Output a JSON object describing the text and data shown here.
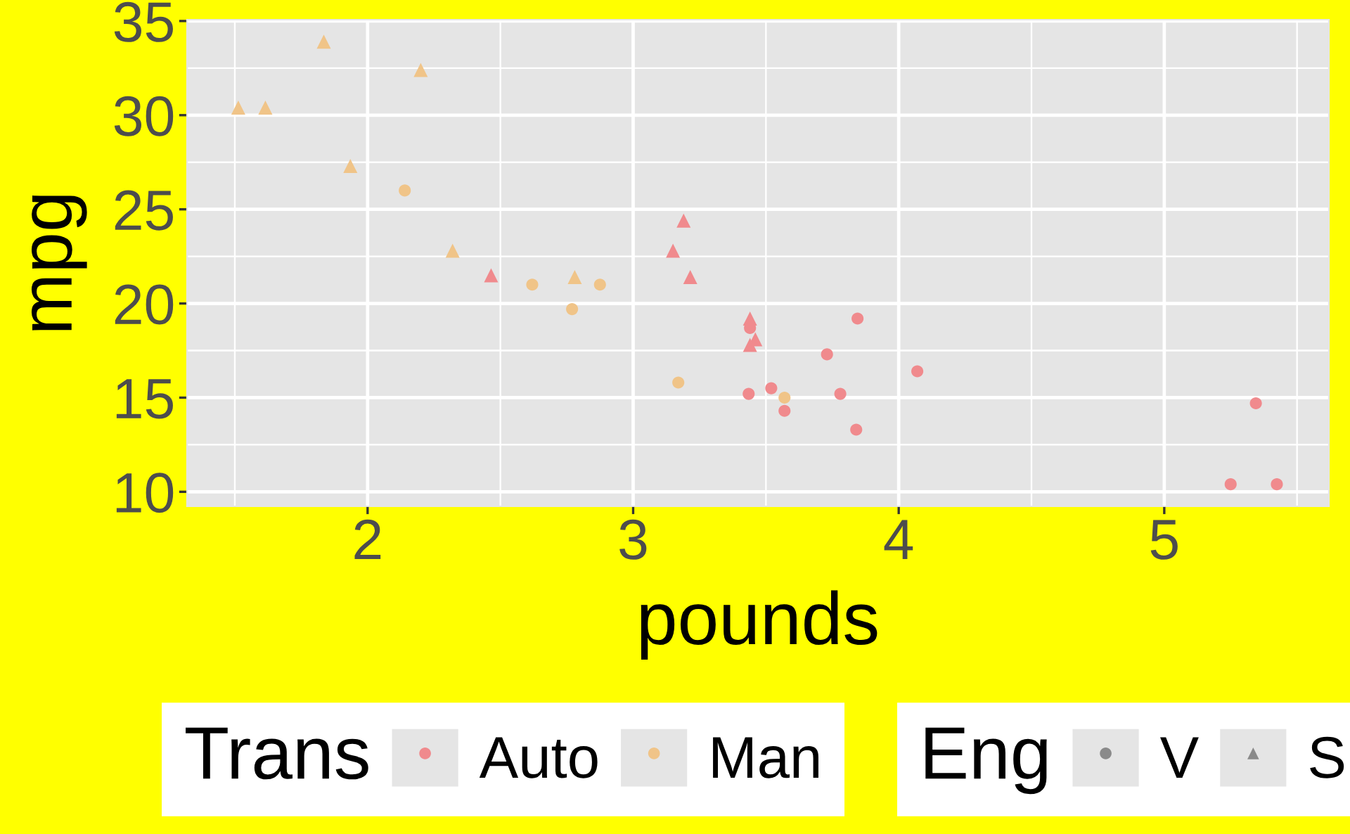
{
  "chart_data": {
    "type": "scatter",
    "xlabel": "pounds",
    "ylabel": "mpg",
    "legend_title": [
      "Trans",
      "Eng"
    ],
    "legend": "bottom",
    "grid": true,
    "xlim": [
      1.32,
      5.62
    ],
    "ylim": [
      9.23,
      35.07
    ],
    "xticks": [
      2,
      3,
      4,
      5
    ],
    "yticks": [
      10,
      15,
      20,
      25,
      30,
      35
    ],
    "series": [
      {
        "name": "Auto",
        "color": "#f08a8d",
        "marker": "circle",
        "x": [
          3.44,
          3.57,
          4.07,
          3.73,
          3.78,
          5.25,
          5.424,
          5.345,
          3.52,
          3.435,
          3.84,
          3.845
        ],
        "values": [
          18.7,
          14.3,
          16.4,
          17.3,
          15.2,
          10.4,
          10.4,
          14.7,
          15.5,
          15.2,
          13.3,
          19.2
        ]
      },
      {
        "color": "#f08a8d",
        "marker": "triangle",
        "x": [
          3.215,
          3.46,
          3.19,
          3.15,
          3.44,
          3.44,
          2.465
        ],
        "values": [
          21.4,
          18.1,
          24.4,
          22.8,
          19.2,
          17.8,
          21.5
        ]
      },
      {
        "name": "Man",
        "color": "#f0c488",
        "marker": "circle",
        "x": [
          2.62,
          2.875,
          2.14,
          3.17,
          2.77,
          3.57
        ],
        "values": [
          21.0,
          21.0,
          26.0,
          15.8,
          19.7,
          15.0
        ]
      },
      {
        "color": "#f0c488",
        "marker": "triangle",
        "x": [
          2.32,
          2.2,
          1.615,
          1.835,
          1.935,
          1.513,
          2.78
        ],
        "values": [
          22.8,
          32.4,
          30.4,
          33.9,
          27.3,
          30.4,
          21.4
        ]
      },
      {
        "name": "V",
        "color": "#8a8a8a",
        "marker": "circle"
      },
      {
        "name": "S",
        "color": "#8a8a8a",
        "marker": "triangle"
      }
    ]
  }
}
